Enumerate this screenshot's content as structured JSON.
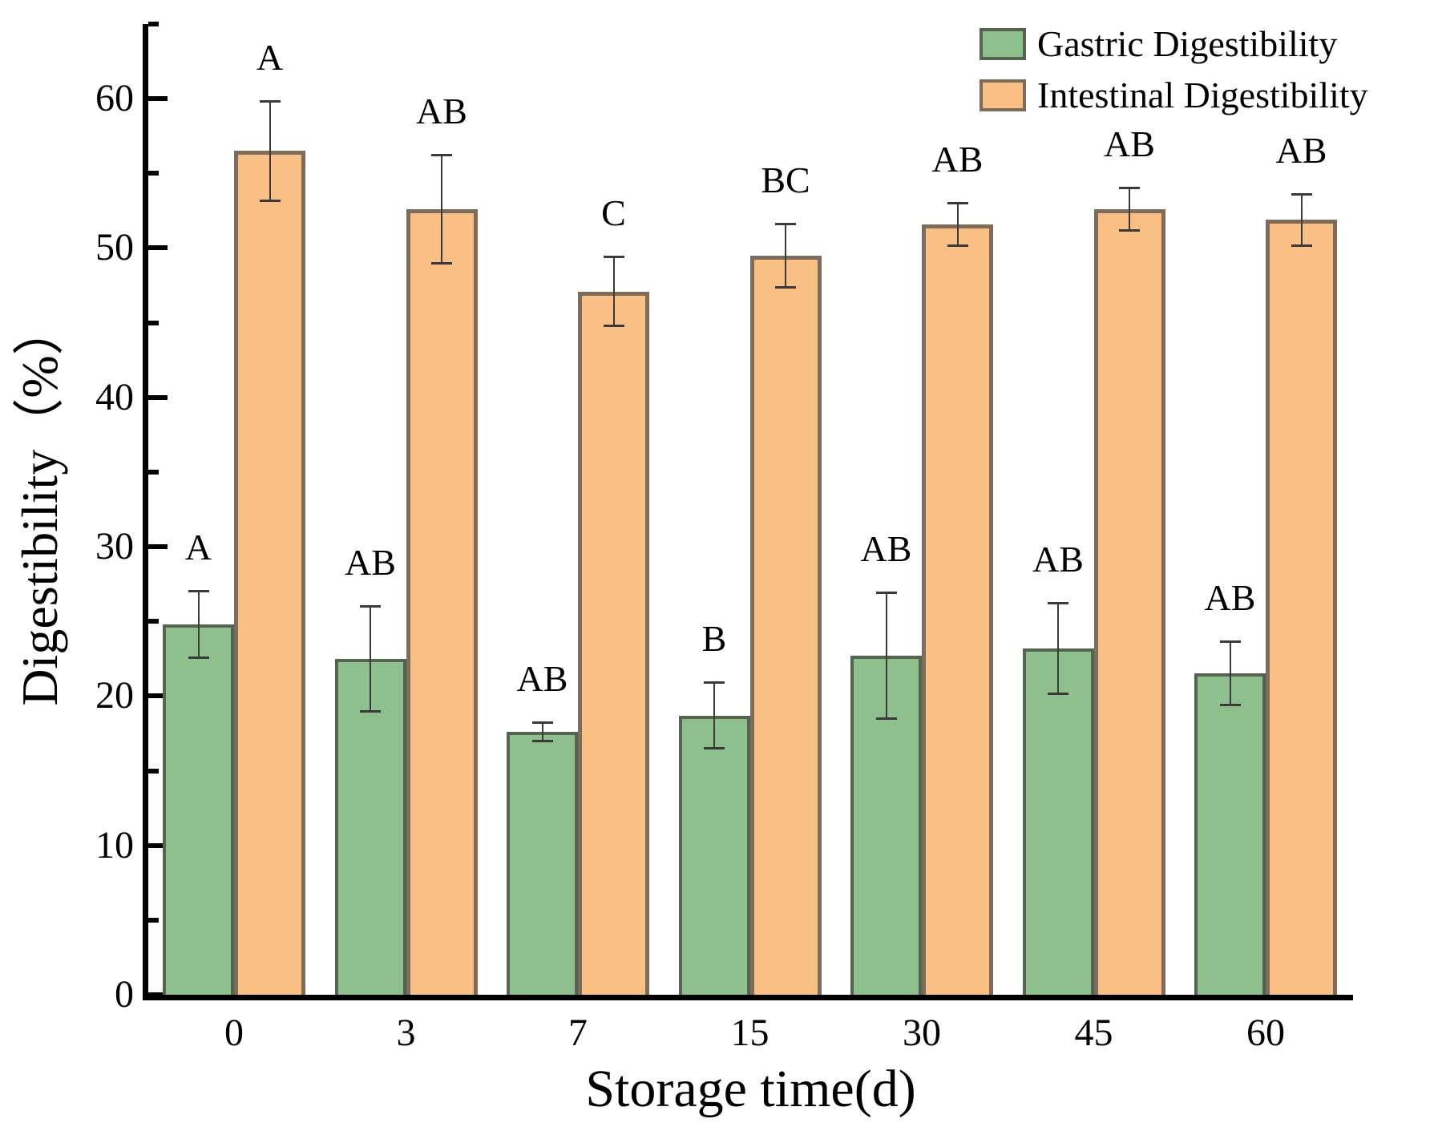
{
  "figure": {
    "background": "#ffffff"
  },
  "chart_data": {
    "type": "bar",
    "title": "",
    "xlabel": "Storage time(d)",
    "ylabel": "Digestibility（%）",
    "categories": [
      "0",
      "3",
      "7",
      "15",
      "30",
      "45",
      "60"
    ],
    "series": [
      {
        "name": "Gastric Digestibility",
        "color": "#8DC08D",
        "edge_color": "#566351",
        "values": [
          24.8,
          22.5,
          17.6,
          18.7,
          22.7,
          23.2,
          21.5
        ],
        "errors": [
          2.3,
          3.6,
          0.7,
          2.3,
          4.3,
          3.1,
          2.2
        ],
        "sig_labels": [
          "A",
          "AB",
          "AB",
          "B",
          "AB",
          "AB",
          "AB"
        ]
      },
      {
        "name": "Intestinal Digestibility",
        "color": "#FABF84",
        "edge_color": "#7D6C5A",
        "values": [
          56.5,
          52.6,
          47.1,
          49.5,
          51.6,
          52.6,
          51.9
        ],
        "errors": [
          3.4,
          3.7,
          2.4,
          2.2,
          1.5,
          1.5,
          1.8
        ],
        "sig_labels": [
          "A",
          "AB",
          "C",
          "BC",
          "AB",
          "AB",
          "AB"
        ]
      }
    ],
    "y_ticks": [
      0,
      10,
      20,
      30,
      40,
      50,
      60
    ],
    "minor_tick_step": 5,
    "ylim": [
      0,
      65
    ],
    "grid": false,
    "legend_position": "top-right",
    "error_bar_color": "#3a3a3a"
  },
  "legend": {
    "items": [
      {
        "label": "Gastric Digestibility"
      },
      {
        "label": "Intestinal Digestibility"
      }
    ]
  },
  "axes": {
    "x_title": "Storage time(d)",
    "y_title": "Digestibility（%）"
  }
}
